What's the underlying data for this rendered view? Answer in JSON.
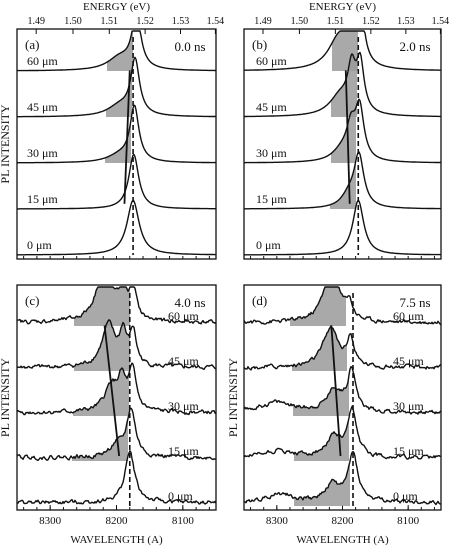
{
  "chart_data": [
    {
      "type": "line",
      "panel_label": "(a)",
      "time_label": "0.0 ns",
      "top_axis_label": "ENERGY (eV)",
      "top_ticks": [
        "1.49",
        "1.50",
        "1.51",
        "1.52",
        "1.53",
        "1.54"
      ],
      "ylabel": "PL INTENSITY",
      "series": [
        {
          "name": "60 μm",
          "peaks": [
            {
              "x": 8170,
              "h": 0.95,
              "w": 8
            },
            {
              "x": 8195,
              "h": 0.22,
              "w": 22
            }
          ]
        },
        {
          "name": "45 μm",
          "peaks": [
            {
              "x": 8172,
              "h": 0.95,
              "w": 8
            },
            {
              "x": 8195,
              "h": 0.18,
              "w": 22
            }
          ]
        },
        {
          "name": "30 μm",
          "peaks": [
            {
              "x": 8173,
              "h": 0.95,
              "w": 8
            },
            {
              "x": 8195,
              "h": 0.12,
              "w": 22
            }
          ]
        },
        {
          "name": "15 μm",
          "peaks": [
            {
              "x": 8174,
              "h": 0.95,
              "w": 9
            }
          ]
        },
        {
          "name": "0 μm",
          "peaks": [
            {
              "x": 8175,
              "h": 0.95,
              "w": 11
            }
          ]
        }
      ]
    },
    {
      "type": "line",
      "panel_label": "(b)",
      "time_label": "2.0 ns",
      "top_axis_label": "ENERGY (eV)",
      "top_ticks": [
        "1.49",
        "1.50",
        "1.51",
        "1.52",
        "1.53",
        "1.54"
      ],
      "ylabel": "",
      "series": [
        {
          "name": "60 μm",
          "peaks": [
            {
              "x": 8172,
              "h": 0.8,
              "w": 7
            },
            {
              "x": 8185,
              "h": 0.9,
              "w": 7
            },
            {
              "x": 8205,
              "h": 0.55,
              "w": 20
            }
          ]
        },
        {
          "name": "45 μm",
          "peaks": [
            {
              "x": 8173,
              "h": 0.85,
              "w": 7
            },
            {
              "x": 8186,
              "h": 0.7,
              "w": 7
            },
            {
              "x": 8203,
              "h": 0.35,
              "w": 20
            }
          ]
        },
        {
          "name": "30 μm",
          "peaks": [
            {
              "x": 8174,
              "h": 0.9,
              "w": 8
            },
            {
              "x": 8187,
              "h": 0.5,
              "w": 8
            },
            {
              "x": 8200,
              "h": 0.2,
              "w": 18
            }
          ]
        },
        {
          "name": "15 μm",
          "peaks": [
            {
              "x": 8175,
              "h": 0.9,
              "w": 9
            },
            {
              "x": 8190,
              "h": 0.2,
              "w": 14
            }
          ]
        },
        {
          "name": "0 μm",
          "peaks": [
            {
              "x": 8176,
              "h": 0.95,
              "w": 10
            }
          ]
        }
      ]
    },
    {
      "type": "line",
      "panel_label": "(c)",
      "time_label": "4.0 ns",
      "xlabel": "WAVELENGTH (A)",
      "x_ticks": [
        "8300",
        "8200",
        "8100"
      ],
      "ylabel": "PL INTENSITY",
      "series": [
        {
          "name": "60 μm",
          "peaks": [
            {
              "x": 8175,
              "h": 0.55,
              "w": 6
            },
            {
              "x": 8190,
              "h": 0.6,
              "w": 6
            },
            {
              "x": 8218,
              "h": 1.0,
              "w": 14
            }
          ]
        },
        {
          "name": "45 μm",
          "peaks": [
            {
              "x": 8175,
              "h": 0.6,
              "w": 6
            },
            {
              "x": 8190,
              "h": 0.55,
              "w": 6
            },
            {
              "x": 8212,
              "h": 0.75,
              "w": 12
            }
          ]
        },
        {
          "name": "30 μm",
          "peaks": [
            {
              "x": 8176,
              "h": 0.7,
              "w": 7
            },
            {
              "x": 8192,
              "h": 0.5,
              "w": 7
            },
            {
              "x": 8208,
              "h": 0.45,
              "w": 12
            }
          ]
        },
        {
          "name": "15 μm",
          "peaks": [
            {
              "x": 8178,
              "h": 0.85,
              "w": 8
            },
            {
              "x": 8200,
              "h": 0.2,
              "w": 12
            }
          ]
        },
        {
          "name": "0 μm",
          "peaks": [
            {
              "x": 8180,
              "h": 0.9,
              "w": 9
            }
          ]
        }
      ]
    },
    {
      "type": "line",
      "panel_label": "(d)",
      "time_label": "7.5 ns",
      "xlabel": "WAVELENGTH (A)",
      "x_ticks": [
        "8300",
        "8200",
        "8100"
      ],
      "ylabel": "PL INTENSITY",
      "series": [
        {
          "name": "60 μm",
          "peaks": [
            {
              "x": 8190,
              "h": 0.3,
              "w": 6
            },
            {
              "x": 8217,
              "h": 1.05,
              "w": 13
            }
          ]
        },
        {
          "name": "45 μm",
          "peaks": [
            {
              "x": 8188,
              "h": 0.5,
              "w": 6
            },
            {
              "x": 8218,
              "h": 0.7,
              "w": 14
            }
          ]
        },
        {
          "name": "30 μm",
          "peaks": [
            {
              "x": 8186,
              "h": 0.75,
              "w": 7
            },
            {
              "x": 8212,
              "h": 0.4,
              "w": 14
            },
            {
              "x": 8300,
              "h": 0.18,
              "w": 30
            }
          ]
        },
        {
          "name": "15 μm",
          "peaks": [
            {
              "x": 8185,
              "h": 0.8,
              "w": 8
            },
            {
              "x": 8213,
              "h": 0.35,
              "w": 13
            },
            {
              "x": 8300,
              "h": 0.12,
              "w": 30
            }
          ]
        },
        {
          "name": "0 μm",
          "peaks": [
            {
              "x": 8184,
              "h": 0.85,
              "w": 9
            },
            {
              "x": 8215,
              "h": 0.3,
              "w": 13
            },
            {
              "x": 8295,
              "h": 0.15,
              "w": 25
            }
          ]
        }
      ]
    }
  ]
}
